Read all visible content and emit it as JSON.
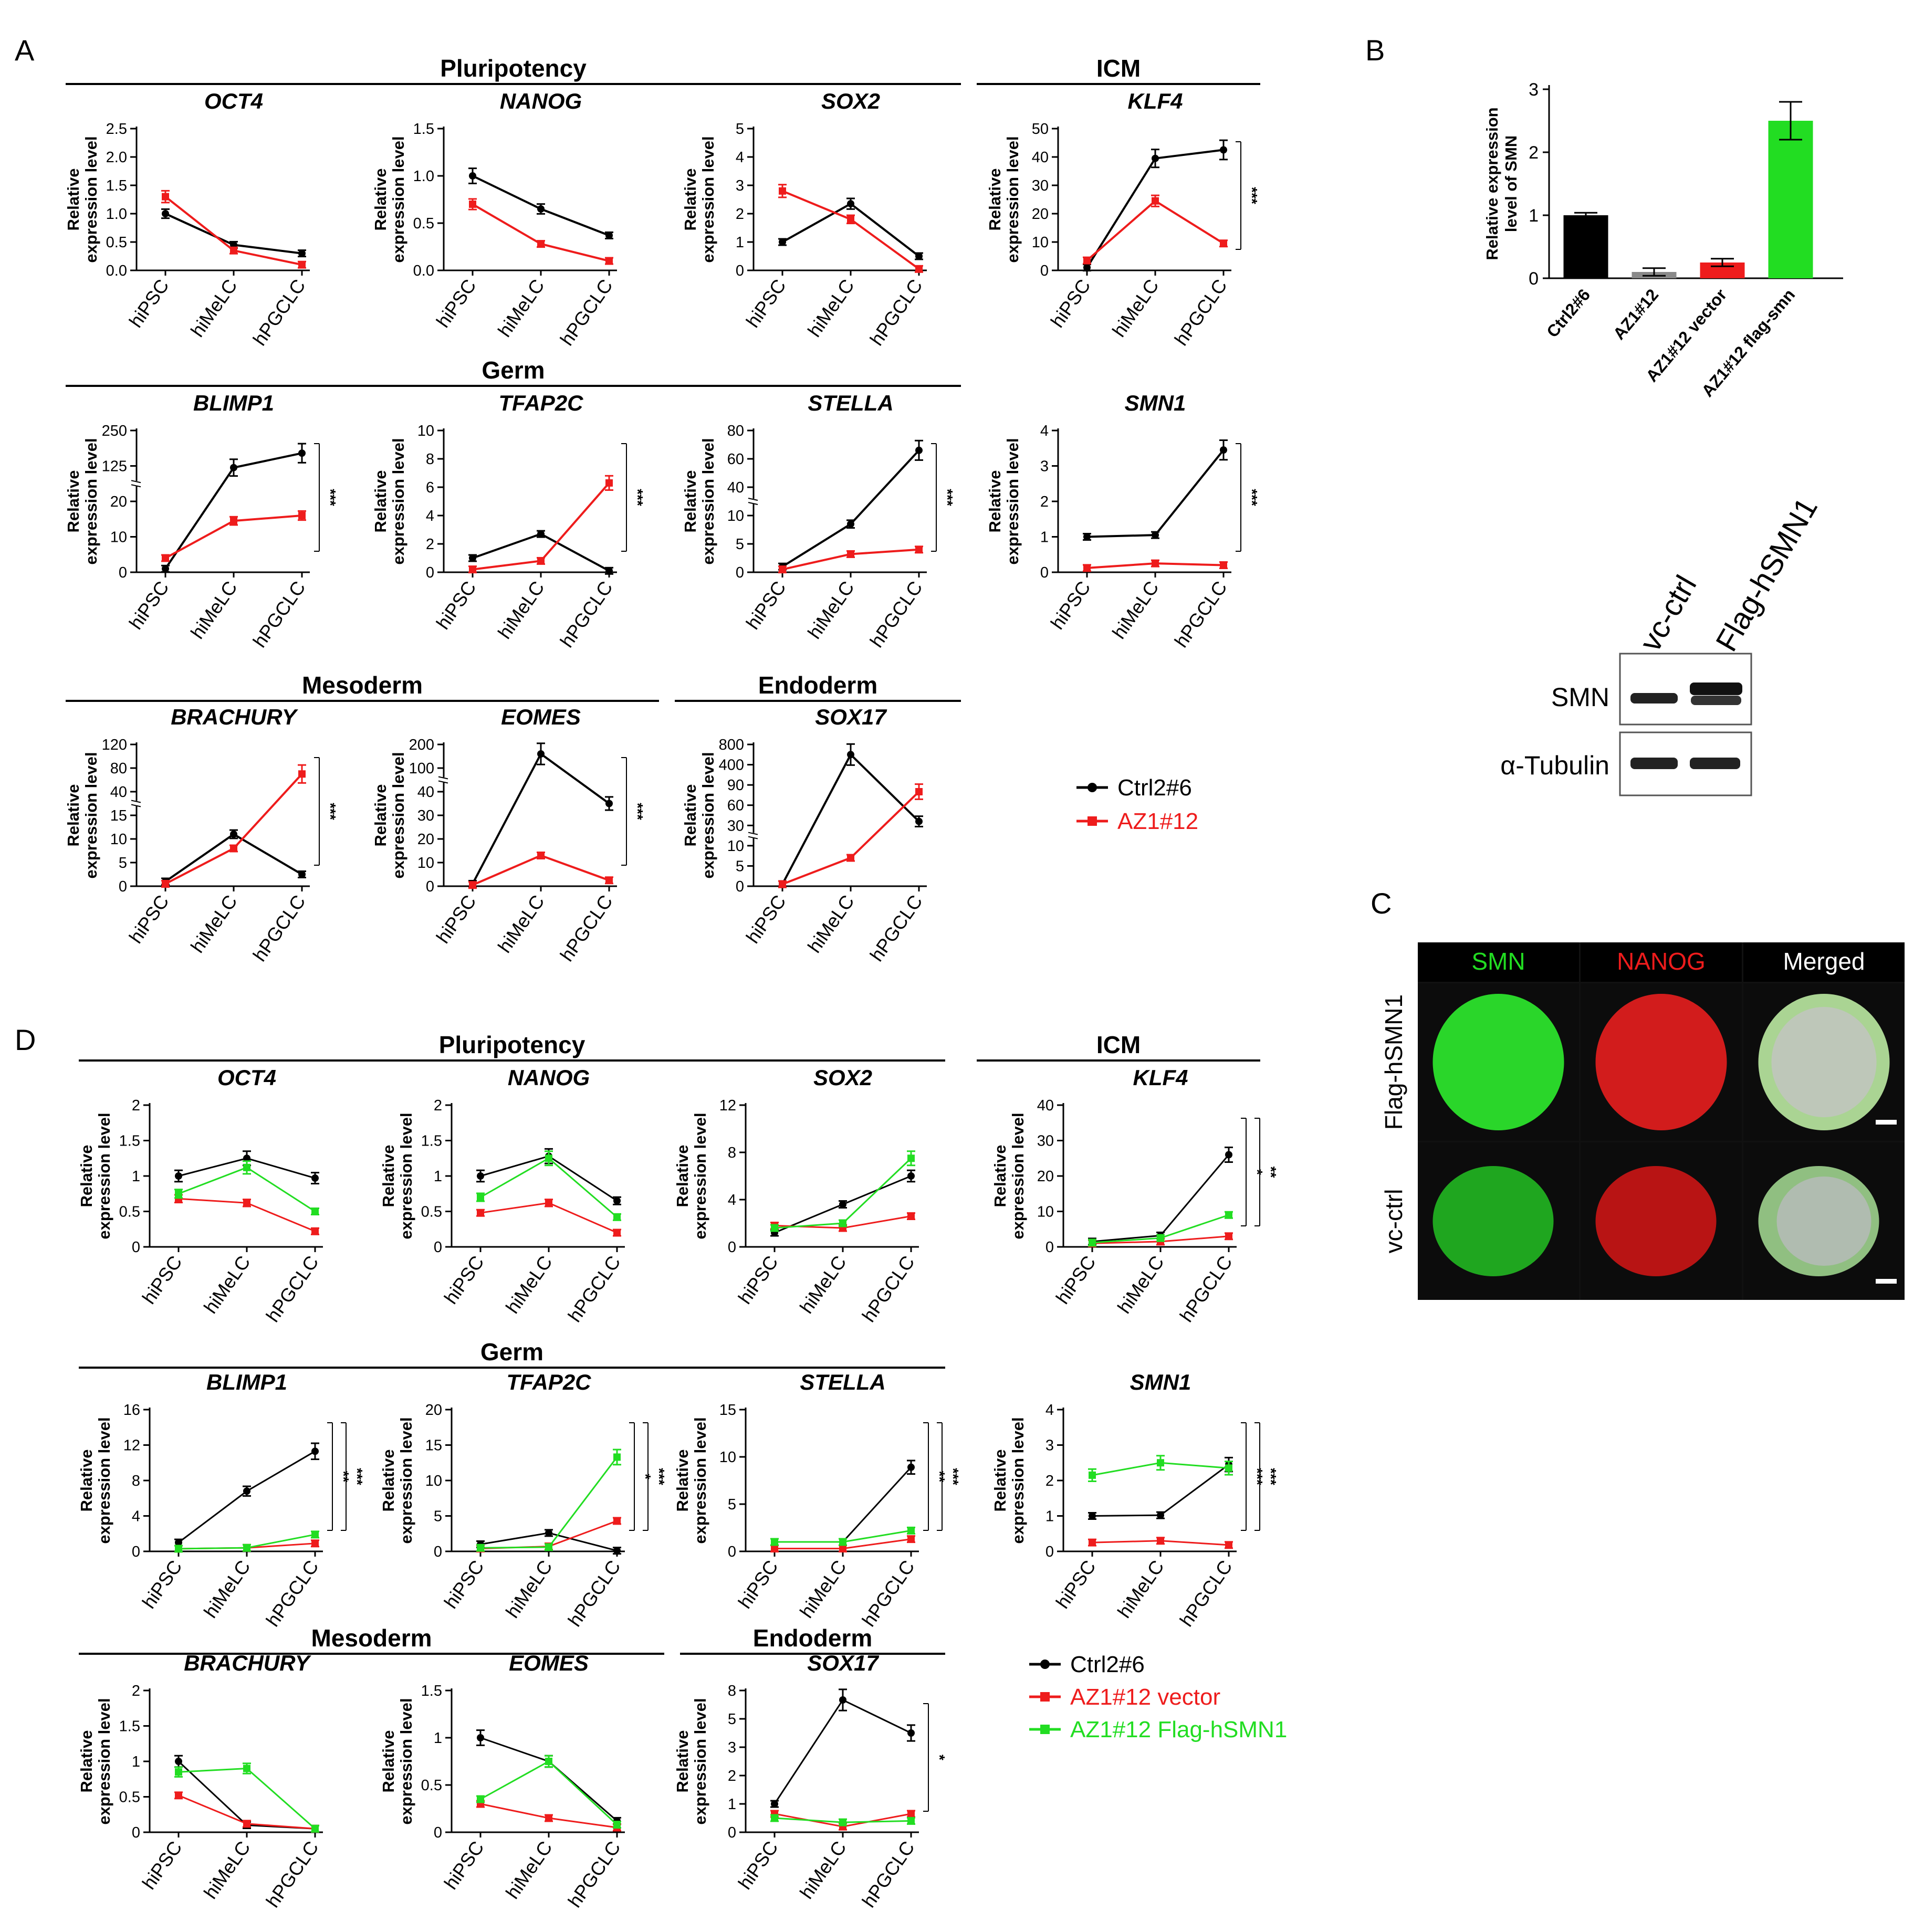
{
  "panel_labels": [
    "A",
    "B",
    "C",
    "D"
  ],
  "colors": {
    "ctrl": "#000000",
    "az1": "#ee1c1c",
    "flag": "#22dd22"
  },
  "x_categories": [
    "hiPSC",
    "hiMeLC",
    "hPGCLC"
  ],
  "y_axis_label_line1": "Relative",
  "y_axis_label_line2": "expression level",
  "group_headers_A": [
    "Pluripotency",
    "ICM",
    "Germ",
    "Mesoderm",
    "Endoderm"
  ],
  "group_headers_D": [
    "Pluripotency",
    "ICM",
    "Germ",
    "Mesoderm",
    "Endoderm"
  ],
  "legend_A": [
    "Ctrl2#6",
    "AZ1#12"
  ],
  "legend_D": [
    "Ctrl2#6",
    "AZ1#12 vector",
    "AZ1#12 Flag-hSMN1"
  ],
  "panel_B": {
    "ylabel_line1": "Relative expression",
    "ylabel_line2": "level of SMN",
    "y_ticks": [
      "0",
      "1",
      "2",
      "3"
    ]
  },
  "blot": {
    "lane_labels": [
      "vc-ctrl",
      "Flag-hSMN1"
    ],
    "row_labels": [
      "SMN",
      "α-Tubulin"
    ]
  },
  "panel_C": {
    "column_headers": [
      "SMN",
      "NANOG",
      "Merged"
    ],
    "row_labels": [
      "Flag-hSMN1",
      "vc-ctrl"
    ]
  },
  "chart_data": [
    {
      "id": "A-OCT4",
      "type": "line",
      "title": "OCT4",
      "categories": [
        "hiPSC",
        "hiMeLC",
        "hPGCLC"
      ],
      "y_ticks": [
        "0.0",
        "0.5",
        "1.0",
        "1.5",
        "2.0",
        "2.5"
      ],
      "series": [
        {
          "name": "Ctrl2#6",
          "values": [
            1.0,
            0.45,
            0.3
          ]
        },
        {
          "name": "AZ1#12",
          "values": [
            1.3,
            0.35,
            0.1
          ]
        }
      ],
      "sig": []
    },
    {
      "id": "A-NANOG",
      "type": "line",
      "title": "NANOG",
      "categories": [
        "hiPSC",
        "hiMeLC",
        "hPGCLC"
      ],
      "y_ticks": [
        "0.0",
        "0.5",
        "1.0",
        "1.5"
      ],
      "series": [
        {
          "name": "Ctrl2#6",
          "values": [
            1.0,
            0.65,
            0.37
          ]
        },
        {
          "name": "AZ1#12",
          "values": [
            0.7,
            0.28,
            0.1
          ]
        }
      ],
      "sig": []
    },
    {
      "id": "A-SOX2",
      "type": "line",
      "title": "SOX2",
      "categories": [
        "hiPSC",
        "hiMeLC",
        "hPGCLC"
      ],
      "y_ticks": [
        "0",
        "1",
        "2",
        "3",
        "4",
        "5"
      ],
      "series": [
        {
          "name": "Ctrl2#6",
          "values": [
            1.0,
            2.35,
            0.5
          ]
        },
        {
          "name": "AZ1#12",
          "values": [
            2.8,
            1.8,
            0.05
          ]
        }
      ],
      "sig": []
    },
    {
      "id": "A-KLF4",
      "type": "line",
      "title": "KLF4",
      "categories": [
        "hiPSC",
        "hiMeLC",
        "hPGCLC"
      ],
      "y_ticks": [
        "0",
        "10",
        "20",
        "30",
        "40",
        "50"
      ],
      "series": [
        {
          "name": "Ctrl2#6",
          "values": [
            1,
            39.5,
            42.5
          ]
        },
        {
          "name": "AZ1#12",
          "values": [
            3.5,
            24.5,
            9.5
          ]
        }
      ],
      "sig": [
        "***"
      ]
    },
    {
      "id": "A-BLIMP1",
      "type": "line",
      "title": "BLIMP1",
      "categories": [
        "hiPSC",
        "hiMeLC",
        "hPGCLC"
      ],
      "y_ticks": [
        "0",
        "10",
        "20",
        "125",
        "250"
      ],
      "series": [
        {
          "name": "Ctrl2#6",
          "values": [
            1,
            120,
            170
          ]
        },
        {
          "name": "AZ1#12",
          "values": [
            4,
            14.5,
            16
          ]
        }
      ],
      "sig": [
        "***"
      ]
    },
    {
      "id": "A-TFAP2C",
      "type": "line",
      "title": "TFAP2C",
      "categories": [
        "hiPSC",
        "hiMeLC",
        "hPGCLC"
      ],
      "y_ticks": [
        "0",
        "2",
        "4",
        "6",
        "8",
        "10"
      ],
      "series": [
        {
          "name": "Ctrl2#6",
          "values": [
            1.0,
            2.7,
            0.1
          ]
        },
        {
          "name": "AZ1#12",
          "values": [
            0.2,
            0.8,
            6.3
          ]
        }
      ],
      "sig": [
        "***"
      ]
    },
    {
      "id": "A-STELLA",
      "type": "line",
      "title": "STELLA",
      "categories": [
        "hiPSC",
        "hiMeLC",
        "hPGCLC"
      ],
      "y_ticks": [
        "0",
        "5",
        "10",
        "40",
        "60",
        "80"
      ],
      "series": [
        {
          "name": "Ctrl2#6",
          "values": [
            1,
            8.5,
            66
          ]
        },
        {
          "name": "AZ1#12",
          "values": [
            0.5,
            3.2,
            4.0
          ]
        }
      ],
      "sig": [
        "***"
      ]
    },
    {
      "id": "A-SMN1",
      "type": "line",
      "title": "SMN1",
      "categories": [
        "hiPSC",
        "hiMeLC",
        "hPGCLC"
      ],
      "y_ticks": [
        "0",
        "1",
        "2",
        "3",
        "4"
      ],
      "series": [
        {
          "name": "Ctrl2#6",
          "values": [
            1.0,
            1.05,
            3.45
          ]
        },
        {
          "name": "AZ1#12",
          "values": [
            0.12,
            0.25,
            0.2
          ]
        }
      ],
      "sig": [
        "***"
      ]
    },
    {
      "id": "A-BRACHURY",
      "type": "line",
      "title": "BRACHURY",
      "categories": [
        "hiPSC",
        "hiMeLC",
        "hPGCLC"
      ],
      "y_ticks": [
        "0",
        "5",
        "10",
        "15",
        "40",
        "80",
        "120"
      ],
      "series": [
        {
          "name": "Ctrl2#6",
          "values": [
            1,
            11,
            2.5
          ]
        },
        {
          "name": "AZ1#12",
          "values": [
            0.5,
            8,
            70
          ]
        }
      ],
      "sig": [
        "***"
      ]
    },
    {
      "id": "A-EOMES",
      "type": "line",
      "title": "EOMES",
      "categories": [
        "hiPSC",
        "hiMeLC",
        "hPGCLC"
      ],
      "y_ticks": [
        "0",
        "10",
        "20",
        "30",
        "40",
        "100",
        "200"
      ],
      "series": [
        {
          "name": "Ctrl2#6",
          "values": [
            1,
            160,
            35
          ]
        },
        {
          "name": "AZ1#12",
          "values": [
            0.5,
            13,
            2.5
          ]
        }
      ],
      "sig": [
        "***"
      ]
    },
    {
      "id": "A-SOX17",
      "type": "line",
      "title": "SOX17",
      "categories": [
        "hiPSC",
        "hiMeLC",
        "hPGCLC"
      ],
      "y_ticks": [
        "0",
        "5",
        "10",
        "30",
        "60",
        "90",
        "400",
        "800"
      ],
      "series": [
        {
          "name": "Ctrl2#6",
          "values": [
            0.5,
            600,
            36
          ]
        },
        {
          "name": "AZ1#12",
          "values": [
            0.5,
            7,
            80
          ]
        }
      ],
      "sig": []
    },
    {
      "id": "B",
      "type": "bar",
      "categories": [
        "Ctrl2#6",
        "AZ1#12",
        "AZ1#12 vector",
        "AZ1#12 flag-smn"
      ],
      "values": [
        1.0,
        0.1,
        0.25,
        2.5
      ],
      "errors": [
        0.04,
        0.06,
        0.06,
        0.3
      ],
      "ylim": [
        0,
        3
      ]
    },
    {
      "id": "D-OCT4",
      "type": "line",
      "title": "OCT4",
      "categories": [
        "hiPSC",
        "hiMeLC",
        "hPGCLC"
      ],
      "y_ticks": [
        "0",
        "0.5",
        "1",
        "1.5",
        "2"
      ],
      "series": [
        {
          "name": "Ctrl2#6",
          "values": [
            1.0,
            1.25,
            0.97
          ]
        },
        {
          "name": "AZ1#12 vector",
          "values": [
            0.68,
            0.62,
            0.22
          ]
        },
        {
          "name": "AZ1#12 Flag-hSMN1",
          "values": [
            0.75,
            1.12,
            0.5
          ]
        }
      ],
      "sig": []
    },
    {
      "id": "D-NANOG",
      "type": "line",
      "title": "NANOG",
      "categories": [
        "hiPSC",
        "hiMeLC",
        "hPGCLC"
      ],
      "y_ticks": [
        "0",
        "0.5",
        "1",
        "1.5",
        "2"
      ],
      "series": [
        {
          "name": "Ctrl2#6",
          "values": [
            1.0,
            1.28,
            0.65
          ]
        },
        {
          "name": "AZ1#12 vector",
          "values": [
            0.48,
            0.62,
            0.2
          ]
        },
        {
          "name": "AZ1#12 Flag-hSMN1",
          "values": [
            0.7,
            1.25,
            0.42
          ]
        }
      ],
      "sig": []
    },
    {
      "id": "D-SOX2",
      "type": "line",
      "title": "SOX2",
      "categories": [
        "hiPSC",
        "hiMeLC",
        "hPGCLC"
      ],
      "y_ticks": [
        "0",
        "4",
        "8",
        "12"
      ],
      "series": [
        {
          "name": "Ctrl2#6",
          "values": [
            1.2,
            3.6,
            6.0
          ]
        },
        {
          "name": "AZ1#12 vector",
          "values": [
            1.8,
            1.6,
            2.6
          ]
        },
        {
          "name": "AZ1#12 Flag-hSMN1",
          "values": [
            1.6,
            2.0,
            7.5
          ]
        }
      ],
      "sig": []
    },
    {
      "id": "D-KLF4",
      "type": "line",
      "title": "KLF4",
      "categories": [
        "hiPSC",
        "hiMeLC",
        "hPGCLC"
      ],
      "y_ticks": [
        "0",
        "10",
        "20",
        "30",
        "40"
      ],
      "series": [
        {
          "name": "Ctrl2#6",
          "values": [
            1.5,
            3.2,
            26
          ]
        },
        {
          "name": "AZ1#12 vector",
          "values": [
            1.0,
            1.5,
            3.0
          ]
        },
        {
          "name": "AZ1#12 Flag-hSMN1",
          "values": [
            1.2,
            2.5,
            9.0
          ]
        }
      ],
      "sig": [
        "*",
        "**"
      ]
    },
    {
      "id": "D-BLIMP1",
      "type": "line",
      "title": "BLIMP1",
      "categories": [
        "hiPSC",
        "hiMeLC",
        "hPGCLC"
      ],
      "y_ticks": [
        "0",
        "4",
        "8",
        "12",
        "16"
      ],
      "series": [
        {
          "name": "Ctrl2#6",
          "values": [
            1.0,
            6.8,
            11.3
          ]
        },
        {
          "name": "AZ1#12 vector",
          "values": [
            0.3,
            0.4,
            0.9
          ]
        },
        {
          "name": "AZ1#12 Flag-hSMN1",
          "values": [
            0.3,
            0.4,
            1.9
          ]
        }
      ],
      "sig": [
        "**",
        "***"
      ]
    },
    {
      "id": "D-TFAP2C",
      "type": "line",
      "title": "TFAP2C",
      "categories": [
        "hiPSC",
        "hiMeLC",
        "hPGCLC"
      ],
      "y_ticks": [
        "0",
        "5",
        "10",
        "15",
        "20"
      ],
      "series": [
        {
          "name": "Ctrl2#6",
          "values": [
            1.0,
            2.6,
            0.1
          ]
        },
        {
          "name": "AZ1#12 vector",
          "values": [
            0.4,
            0.7,
            4.3
          ]
        },
        {
          "name": "AZ1#12 Flag-hSMN1",
          "values": [
            0.5,
            0.6,
            13.3
          ]
        }
      ],
      "sig": [
        "*",
        "***"
      ]
    },
    {
      "id": "D-STELLA",
      "type": "line",
      "title": "STELLA",
      "categories": [
        "hiPSC",
        "hiMeLC",
        "hPGCLC"
      ],
      "y_ticks": [
        "0",
        "5",
        "10",
        "15"
      ],
      "series": [
        {
          "name": "Ctrl2#6",
          "values": [
            1.0,
            1.0,
            8.9
          ]
        },
        {
          "name": "AZ1#12 vector",
          "values": [
            0.3,
            0.3,
            1.3
          ]
        },
        {
          "name": "AZ1#12 Flag-hSMN1",
          "values": [
            1.0,
            1.0,
            2.2
          ]
        }
      ],
      "sig": [
        "**",
        "***"
      ]
    },
    {
      "id": "D-SMN1",
      "type": "line",
      "title": "SMN1",
      "categories": [
        "hiPSC",
        "hiMeLC",
        "hPGCLC"
      ],
      "y_ticks": [
        "0",
        "1",
        "2",
        "3",
        "4"
      ],
      "series": [
        {
          "name": "Ctrl2#6",
          "values": [
            1.0,
            1.02,
            2.45
          ]
        },
        {
          "name": "AZ1#12 vector",
          "values": [
            0.25,
            0.3,
            0.18
          ]
        },
        {
          "name": "AZ1#12 Flag-hSMN1",
          "values": [
            2.15,
            2.5,
            2.35
          ]
        }
      ],
      "sig": [
        "***",
        "***"
      ]
    },
    {
      "id": "D-BRACHURY",
      "type": "line",
      "title": "BRACHURY",
      "categories": [
        "hiPSC",
        "hiMeLC",
        "hPGCLC"
      ],
      "y_ticks": [
        "0",
        "0.5",
        "1",
        "1.5",
        "2"
      ],
      "series": [
        {
          "name": "Ctrl2#6",
          "values": [
            1.0,
            0.1,
            0.05
          ]
        },
        {
          "name": "AZ1#12 vector",
          "values": [
            0.52,
            0.12,
            0.05
          ]
        },
        {
          "name": "AZ1#12 Flag-hSMN1",
          "values": [
            0.85,
            0.9,
            0.05
          ]
        }
      ],
      "sig": []
    },
    {
      "id": "D-EOMES",
      "type": "line",
      "title": "EOMES",
      "categories": [
        "hiPSC",
        "hiMeLC",
        "hPGCLC"
      ],
      "y_ticks": [
        "0",
        "0.5",
        "1",
        "1.5"
      ],
      "series": [
        {
          "name": "Ctrl2#6",
          "values": [
            1.0,
            0.75,
            0.12
          ]
        },
        {
          "name": "AZ1#12 vector",
          "values": [
            0.3,
            0.15,
            0.05
          ]
        },
        {
          "name": "AZ1#12 Flag-hSMN1",
          "values": [
            0.35,
            0.75,
            0.08
          ]
        }
      ],
      "sig": []
    },
    {
      "id": "D-SOX17",
      "type": "line",
      "title": "SOX17",
      "categories": [
        "hiPSC",
        "hiMeLC",
        "hPGCLC"
      ],
      "y_ticks": [
        "0",
        "1",
        "2",
        "3",
        "5",
        "8"
      ],
      "series": [
        {
          "name": "Ctrl2#6",
          "values": [
            1.0,
            7.0,
            4.0
          ]
        },
        {
          "name": "AZ1#12 vector",
          "values": [
            0.65,
            0.2,
            0.65
          ]
        },
        {
          "name": "AZ1#12 Flag-hSMN1",
          "values": [
            0.5,
            0.35,
            0.4
          ]
        }
      ],
      "sig": [
        "*"
      ]
    }
  ]
}
